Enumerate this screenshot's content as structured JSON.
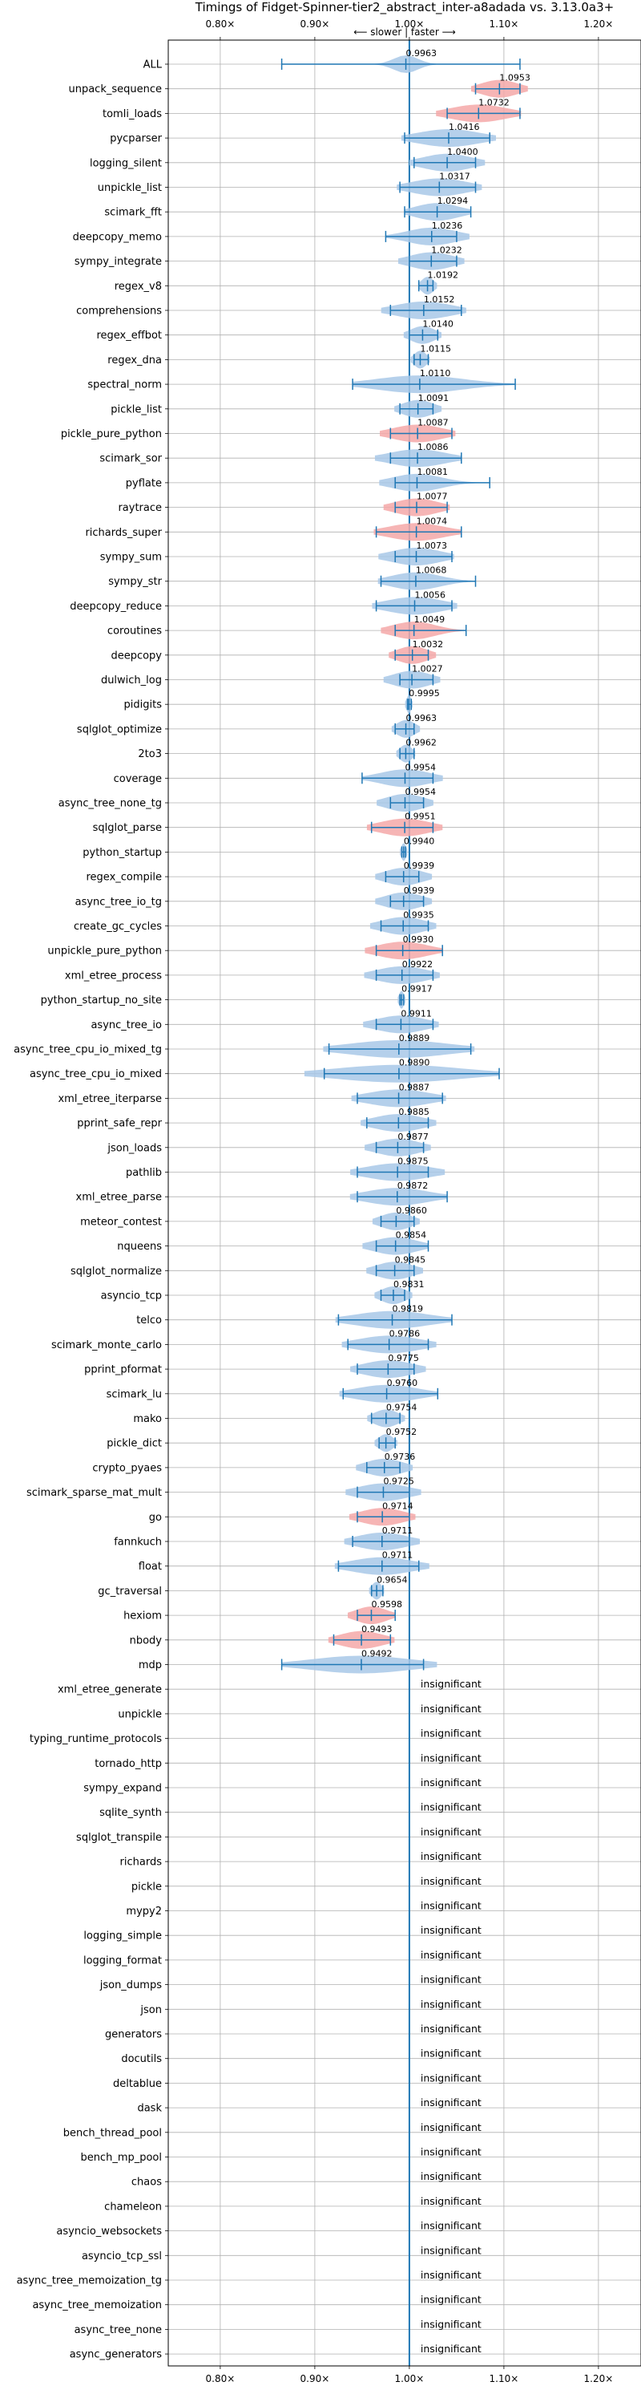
{
  "chart_data": {
    "type": "violin",
    "title": "Timings of Fidget-Spinner-tier2_abstract_inter-a8adada vs. 3.13.0a3+",
    "direction_label": "⟵ slower | faster ⟶",
    "xlim": [
      0.745,
      1.245
    ],
    "xticks": [
      0.8,
      0.9,
      1.0,
      1.1,
      1.2
    ],
    "xtick_labels": [
      "0.80×",
      "0.90×",
      "1.00×",
      "1.10×",
      "1.20×"
    ],
    "insignificant_label": "insignificant",
    "grid": true,
    "colors": {
      "neutral": "#a8c8e8",
      "highlight": "#f4a8a8",
      "line": "#1f77b4",
      "grid": "#b0b0b0"
    },
    "benchmarks": [
      {
        "name": "ALL",
        "value": 0.9963,
        "label": "0.9963",
        "lo": 0.865,
        "hi": 1.117,
        "spread": 0.02,
        "highlight": false
      },
      {
        "name": "unpack_sequence",
        "value": 1.0953,
        "label": "1.0953",
        "lo": 1.07,
        "hi": 1.117,
        "spread": 0.03,
        "highlight": true
      },
      {
        "name": "tomli_loads",
        "value": 1.0732,
        "label": "1.0732",
        "lo": 1.04,
        "hi": 1.117,
        "spread": 0.045,
        "highlight": true
      },
      {
        "name": "pycparser",
        "value": 1.0416,
        "label": "1.0416",
        "lo": 0.995,
        "hi": 1.085,
        "spread": 0.05,
        "highlight": false
      },
      {
        "name": "logging_silent",
        "value": 1.04,
        "label": "1.0400",
        "lo": 1.005,
        "hi": 1.07,
        "spread": 0.04,
        "highlight": false
      },
      {
        "name": "unpickle_list",
        "value": 1.0317,
        "label": "1.0317",
        "lo": 0.99,
        "hi": 1.07,
        "spread": 0.045,
        "highlight": false
      },
      {
        "name": "scimark_fft",
        "value": 1.0294,
        "label": "1.0294",
        "lo": 0.995,
        "hi": 1.065,
        "spread": 0.035,
        "highlight": false
      },
      {
        "name": "deepcopy_memo",
        "value": 1.0236,
        "label": "1.0236",
        "lo": 0.975,
        "hi": 1.05,
        "spread": 0.04,
        "highlight": false
      },
      {
        "name": "sympy_integrate",
        "value": 1.0232,
        "label": "1.0232",
        "lo": 1.0,
        "hi": 1.05,
        "spread": 0.035,
        "highlight": false
      },
      {
        "name": "regex_v8",
        "value": 1.0192,
        "label": "1.0192",
        "lo": 1.01,
        "hi": 1.025,
        "spread": 0.01,
        "highlight": false
      },
      {
        "name": "comprehensions",
        "value": 1.0152,
        "label": "1.0152",
        "lo": 0.98,
        "hi": 1.055,
        "spread": 0.045,
        "highlight": false
      },
      {
        "name": "regex_effbot",
        "value": 1.014,
        "label": "1.0140",
        "lo": 1.0,
        "hi": 1.03,
        "spread": 0.02,
        "highlight": false
      },
      {
        "name": "regex_dna",
        "value": 1.0115,
        "label": "1.0115",
        "lo": 1.005,
        "hi": 1.02,
        "spread": 0.01,
        "highlight": false
      },
      {
        "name": "spectral_norm",
        "value": 1.011,
        "label": "1.0110",
        "lo": 0.94,
        "hi": 1.112,
        "spread": 0.07,
        "highlight": false
      },
      {
        "name": "pickle_list",
        "value": 1.0091,
        "label": "1.0091",
        "lo": 0.99,
        "hi": 1.025,
        "spread": 0.025,
        "highlight": false
      },
      {
        "name": "pickle_pure_python",
        "value": 1.0087,
        "label": "1.0087",
        "lo": 0.98,
        "hi": 1.045,
        "spread": 0.04,
        "highlight": true
      },
      {
        "name": "scimark_sor",
        "value": 1.0086,
        "label": "1.0086",
        "lo": 0.98,
        "hi": 1.055,
        "spread": 0.045,
        "highlight": false
      },
      {
        "name": "pyflate",
        "value": 1.0081,
        "label": "1.0081",
        "lo": 0.985,
        "hi": 1.085,
        "spread": 0.04,
        "highlight": false
      },
      {
        "name": "raytrace",
        "value": 1.0077,
        "label": "1.0077",
        "lo": 0.985,
        "hi": 1.04,
        "spread": 0.035,
        "highlight": true
      },
      {
        "name": "richards_super",
        "value": 1.0074,
        "label": "1.0074",
        "lo": 0.965,
        "hi": 1.055,
        "spread": 0.045,
        "highlight": true
      },
      {
        "name": "sympy_sum",
        "value": 1.0073,
        "label": "1.0073",
        "lo": 0.985,
        "hi": 1.045,
        "spread": 0.04,
        "highlight": false
      },
      {
        "name": "sympy_str",
        "value": 1.0068,
        "label": "1.0068",
        "lo": 0.97,
        "hi": 1.07,
        "spread": 0.04,
        "highlight": false
      },
      {
        "name": "deepcopy_reduce",
        "value": 1.0056,
        "label": "1.0056",
        "lo": 0.965,
        "hi": 1.045,
        "spread": 0.045,
        "highlight": false
      },
      {
        "name": "coroutines",
        "value": 1.0049,
        "label": "1.0049",
        "lo": 0.985,
        "hi": 1.06,
        "spread": 0.035,
        "highlight": true
      },
      {
        "name": "deepcopy",
        "value": 1.0032,
        "label": "1.0032",
        "lo": 0.985,
        "hi": 1.02,
        "spread": 0.025,
        "highlight": true
      },
      {
        "name": "dulwich_log",
        "value": 1.0027,
        "label": "1.0027",
        "lo": 0.99,
        "hi": 1.025,
        "spread": 0.03,
        "highlight": false
      },
      {
        "name": "pidigits",
        "value": 0.9995,
        "label": "0.9995",
        "lo": 0.998,
        "hi": 1.002,
        "spread": 0.004,
        "highlight": false
      },
      {
        "name": "sqlglot_optimize",
        "value": 0.9963,
        "label": "0.9963",
        "lo": 0.985,
        "hi": 1.005,
        "spread": 0.015,
        "highlight": false
      },
      {
        "name": "2to3",
        "value": 0.9962,
        "label": "0.9962",
        "lo": 0.99,
        "hi": 1.005,
        "spread": 0.01,
        "highlight": false
      },
      {
        "name": "coverage",
        "value": 0.9954,
        "label": "0.9954",
        "lo": 0.95,
        "hi": 1.025,
        "spread": 0.04,
        "highlight": false
      },
      {
        "name": "async_tree_none_tg",
        "value": 0.9954,
        "label": "0.9954",
        "lo": 0.98,
        "hi": 1.015,
        "spread": 0.03,
        "highlight": false
      },
      {
        "name": "sqlglot_parse",
        "value": 0.9951,
        "label": "0.9951",
        "lo": 0.96,
        "hi": 1.025,
        "spread": 0.04,
        "highlight": true
      },
      {
        "name": "python_startup",
        "value": 0.994,
        "label": "0.9940",
        "lo": 0.992,
        "hi": 0.996,
        "spread": 0.004,
        "highlight": false
      },
      {
        "name": "regex_compile",
        "value": 0.9939,
        "label": "0.9939",
        "lo": 0.975,
        "hi": 1.01,
        "spread": 0.03,
        "highlight": false
      },
      {
        "name": "async_tree_io_tg",
        "value": 0.9939,
        "label": "0.9939",
        "lo": 0.98,
        "hi": 1.015,
        "spread": 0.03,
        "highlight": false
      },
      {
        "name": "create_gc_cycles",
        "value": 0.9935,
        "label": "0.9935",
        "lo": 0.97,
        "hi": 1.02,
        "spread": 0.035,
        "highlight": false
      },
      {
        "name": "unpickle_pure_python",
        "value": 0.993,
        "label": "0.9930",
        "lo": 0.965,
        "hi": 1.035,
        "spread": 0.04,
        "highlight": true
      },
      {
        "name": "xml_etree_process",
        "value": 0.9922,
        "label": "0.9922",
        "lo": 0.965,
        "hi": 1.025,
        "spread": 0.04,
        "highlight": false
      },
      {
        "name": "python_startup_no_site",
        "value": 0.9917,
        "label": "0.9917",
        "lo": 0.99,
        "hi": 0.994,
        "spread": 0.004,
        "highlight": false
      },
      {
        "name": "async_tree_io",
        "value": 0.9911,
        "label": "0.9911",
        "lo": 0.965,
        "hi": 1.025,
        "spread": 0.04,
        "highlight": false
      },
      {
        "name": "async_tree_cpu_io_mixed_tg",
        "value": 0.9889,
        "label": "0.9889",
        "lo": 0.915,
        "hi": 1.065,
        "spread": 0.08,
        "highlight": false
      },
      {
        "name": "async_tree_cpu_io_mixed",
        "value": 0.989,
        "label": "0.9890",
        "lo": 0.91,
        "hi": 1.095,
        "spread": 0.1,
        "highlight": false
      },
      {
        "name": "xml_etree_iterparse",
        "value": 0.9887,
        "label": "0.9887",
        "lo": 0.945,
        "hi": 1.035,
        "spread": 0.05,
        "highlight": false
      },
      {
        "name": "pprint_safe_repr",
        "value": 0.9885,
        "label": "0.9885",
        "lo": 0.955,
        "hi": 1.02,
        "spread": 0.04,
        "highlight": false
      },
      {
        "name": "json_loads",
        "value": 0.9877,
        "label": "0.9877",
        "lo": 0.965,
        "hi": 1.015,
        "spread": 0.035,
        "highlight": false
      },
      {
        "name": "pathlib",
        "value": 0.9875,
        "label": "0.9875",
        "lo": 0.945,
        "hi": 1.02,
        "spread": 0.05,
        "highlight": false
      },
      {
        "name": "xml_etree_parse",
        "value": 0.9872,
        "label": "0.9872",
        "lo": 0.945,
        "hi": 1.04,
        "spread": 0.05,
        "highlight": false
      },
      {
        "name": "meteor_contest",
        "value": 0.986,
        "label": "0.9860",
        "lo": 0.97,
        "hi": 1.005,
        "spread": 0.025,
        "highlight": false
      },
      {
        "name": "nqueens",
        "value": 0.9854,
        "label": "0.9854",
        "lo": 0.965,
        "hi": 1.02,
        "spread": 0.035,
        "highlight": false
      },
      {
        "name": "sqlglot_normalize",
        "value": 0.9845,
        "label": "0.9845",
        "lo": 0.965,
        "hi": 1.005,
        "spread": 0.03,
        "highlight": false
      },
      {
        "name": "asyncio_tcp",
        "value": 0.9831,
        "label": "0.9831",
        "lo": 0.97,
        "hi": 0.995,
        "spread": 0.02,
        "highlight": false
      },
      {
        "name": "telco",
        "value": 0.9819,
        "label": "0.9819",
        "lo": 0.925,
        "hi": 1.045,
        "spread": 0.06,
        "highlight": false
      },
      {
        "name": "scimark_monte_carlo",
        "value": 0.9786,
        "label": "0.9786",
        "lo": 0.935,
        "hi": 1.02,
        "spread": 0.05,
        "highlight": false
      },
      {
        "name": "pprint_pformat",
        "value": 0.9775,
        "label": "0.9775",
        "lo": 0.945,
        "hi": 1.005,
        "spread": 0.04,
        "highlight": false
      },
      {
        "name": "scimark_lu",
        "value": 0.976,
        "label": "0.9760",
        "lo": 0.93,
        "hi": 1.03,
        "spread": 0.05,
        "highlight": false
      },
      {
        "name": "mako",
        "value": 0.9754,
        "label": "0.9754",
        "lo": 0.96,
        "hi": 0.99,
        "spread": 0.02,
        "highlight": false
      },
      {
        "name": "pickle_dict",
        "value": 0.9752,
        "label": "0.9752",
        "lo": 0.968,
        "hi": 0.985,
        "spread": 0.012,
        "highlight": false
      },
      {
        "name": "crypto_pyaes",
        "value": 0.9736,
        "label": "0.9736",
        "lo": 0.955,
        "hi": 0.99,
        "spread": 0.03,
        "highlight": false
      },
      {
        "name": "scimark_sparse_mat_mult",
        "value": 0.9725,
        "label": "0.9725",
        "lo": 0.945,
        "hi": 1.0,
        "spread": 0.04,
        "highlight": false
      },
      {
        "name": "go",
        "value": 0.9714,
        "label": "0.9714",
        "lo": 0.945,
        "hi": 1.0,
        "spread": 0.035,
        "highlight": true
      },
      {
        "name": "fannkuch",
        "value": 0.9711,
        "label": "0.9711",
        "lo": 0.94,
        "hi": 1.0,
        "spread": 0.04,
        "highlight": false
      },
      {
        "name": "float",
        "value": 0.9711,
        "label": "0.9711",
        "lo": 0.925,
        "hi": 1.01,
        "spread": 0.05,
        "highlight": false
      },
      {
        "name": "gc_traversal",
        "value": 0.9654,
        "label": "0.9654",
        "lo": 0.96,
        "hi": 0.972,
        "spread": 0.008,
        "highlight": false
      },
      {
        "name": "hexiom",
        "value": 0.9598,
        "label": "0.9598",
        "lo": 0.945,
        "hi": 0.985,
        "spread": 0.025,
        "highlight": true
      },
      {
        "name": "nbody",
        "value": 0.9493,
        "label": "0.9493",
        "lo": 0.92,
        "hi": 0.98,
        "spread": 0.035,
        "highlight": true
      },
      {
        "name": "mdp",
        "value": 0.9492,
        "label": "0.9492",
        "lo": 0.865,
        "hi": 1.015,
        "spread": 0.08,
        "highlight": false
      },
      {
        "name": "xml_etree_generate",
        "value": null,
        "insignificant": true
      },
      {
        "name": "unpickle",
        "value": null,
        "insignificant": true
      },
      {
        "name": "typing_runtime_protocols",
        "value": null,
        "insignificant": true
      },
      {
        "name": "tornado_http",
        "value": null,
        "insignificant": true
      },
      {
        "name": "sympy_expand",
        "value": null,
        "insignificant": true
      },
      {
        "name": "sqlite_synth",
        "value": null,
        "insignificant": true
      },
      {
        "name": "sqlglot_transpile",
        "value": null,
        "insignificant": true
      },
      {
        "name": "richards",
        "value": null,
        "insignificant": true
      },
      {
        "name": "pickle",
        "value": null,
        "insignificant": true
      },
      {
        "name": "mypy2",
        "value": null,
        "insignificant": true
      },
      {
        "name": "logging_simple",
        "value": null,
        "insignificant": true
      },
      {
        "name": "logging_format",
        "value": null,
        "insignificant": true
      },
      {
        "name": "json_dumps",
        "value": null,
        "insignificant": true
      },
      {
        "name": "json",
        "value": null,
        "insignificant": true
      },
      {
        "name": "generators",
        "value": null,
        "insignificant": true
      },
      {
        "name": "docutils",
        "value": null,
        "insignificant": true
      },
      {
        "name": "deltablue",
        "value": null,
        "insignificant": true
      },
      {
        "name": "dask",
        "value": null,
        "insignificant": true
      },
      {
        "name": "bench_thread_pool",
        "value": null,
        "insignificant": true
      },
      {
        "name": "bench_mp_pool",
        "value": null,
        "insignificant": true
      },
      {
        "name": "chaos",
        "value": null,
        "insignificant": true
      },
      {
        "name": "chameleon",
        "value": null,
        "insignificant": true
      },
      {
        "name": "asyncio_websockets",
        "value": null,
        "insignificant": true
      },
      {
        "name": "asyncio_tcp_ssl",
        "value": null,
        "insignificant": true
      },
      {
        "name": "async_tree_memoization_tg",
        "value": null,
        "insignificant": true
      },
      {
        "name": "async_tree_memoization",
        "value": null,
        "insignificant": true
      },
      {
        "name": "async_tree_none",
        "value": null,
        "insignificant": true
      },
      {
        "name": "async_generators",
        "value": null,
        "insignificant": true
      }
    ]
  }
}
